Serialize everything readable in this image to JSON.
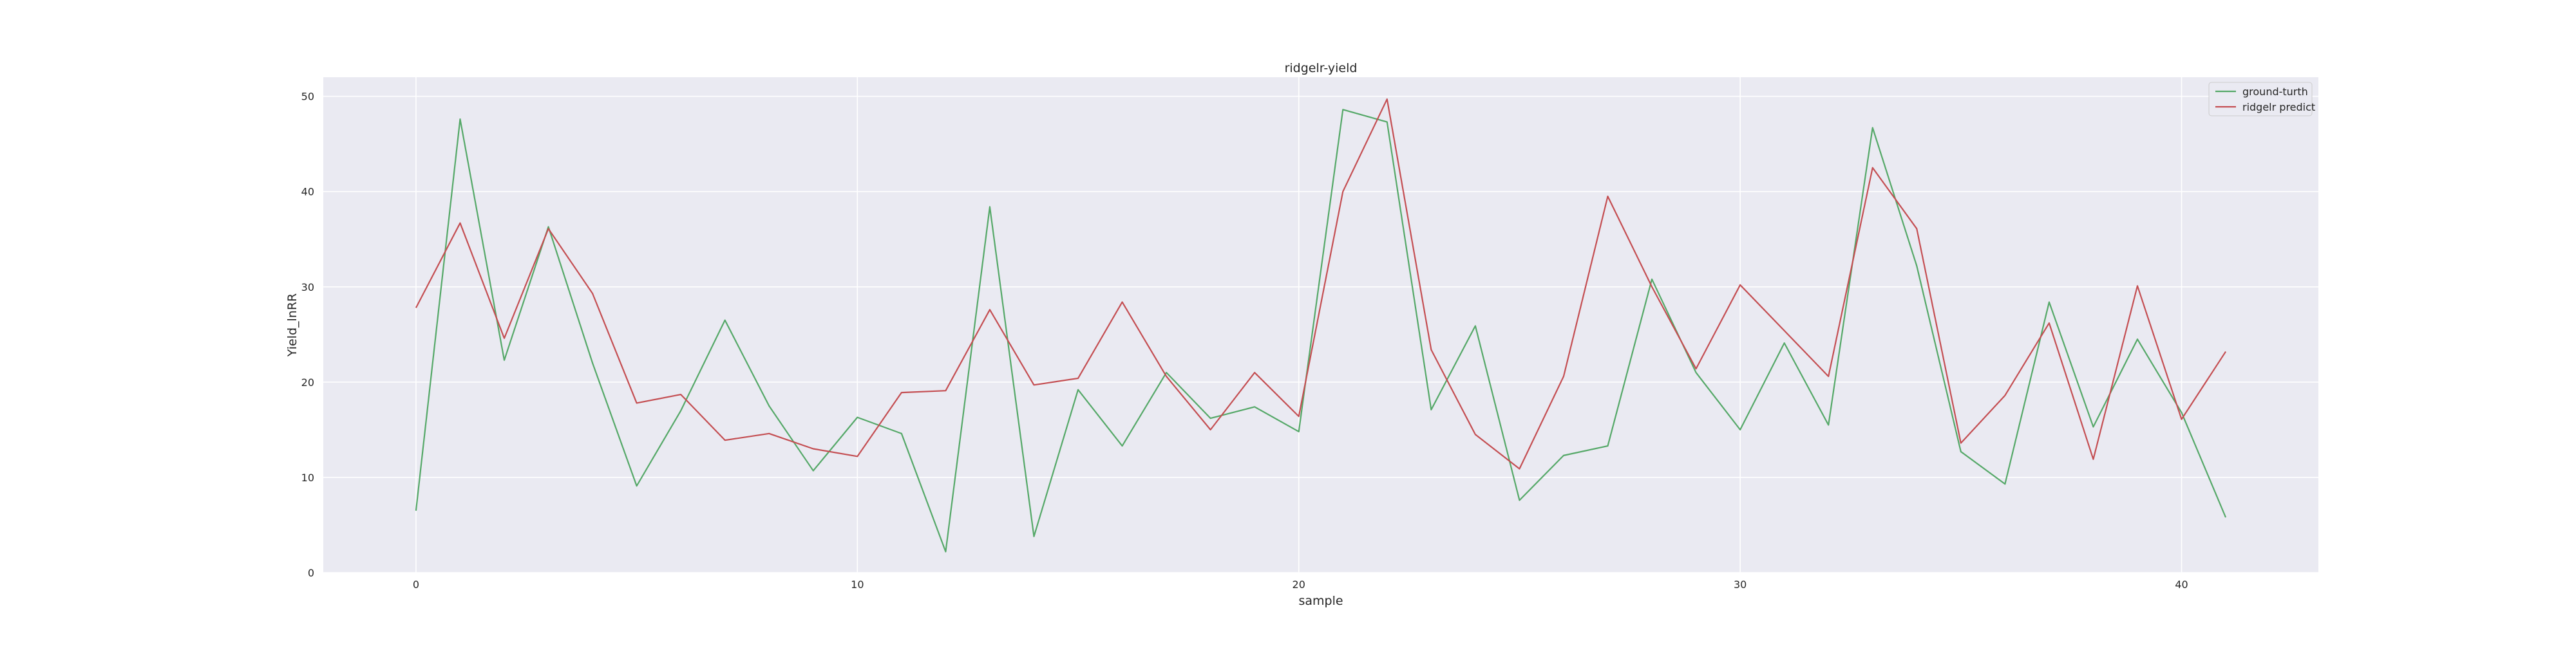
{
  "chart_data": {
    "type": "line",
    "title": "ridgelr-yield",
    "xlabel": "sample",
    "ylabel": "Yield_lnRR",
    "xlim": [
      -2.1,
      43.1
    ],
    "ylim": [
      0,
      52
    ],
    "xticks": [
      0,
      10,
      20,
      30,
      40
    ],
    "yticks": [
      0,
      10,
      20,
      30,
      40,
      50
    ],
    "grid": true,
    "legend_position": "top-right",
    "x": [
      0,
      1,
      2,
      3,
      4,
      5,
      6,
      7,
      8,
      9,
      10,
      11,
      12,
      13,
      14,
      15,
      16,
      17,
      18,
      19,
      20,
      21,
      22,
      23,
      24,
      25,
      26,
      27,
      28,
      29,
      30,
      31,
      32,
      33,
      34,
      35,
      36,
      37,
      38,
      39,
      40,
      41
    ],
    "series": [
      {
        "name": "ground-turth",
        "color": "#55a868",
        "values": [
          6.5,
          47.6,
          22.3,
          36.3,
          22.0,
          9.1,
          17.0,
          26.5,
          17.5,
          10.7,
          16.3,
          14.6,
          2.2,
          38.4,
          3.8,
          19.2,
          13.3,
          21.0,
          16.2,
          17.4,
          14.8,
          48.6,
          47.3,
          17.1,
          25.9,
          7.6,
          12.3,
          13.3,
          30.8,
          21.0,
          15.0,
          24.1,
          15.5,
          46.7,
          32.2,
          12.7,
          9.3,
          28.4,
          15.3,
          24.5,
          16.8,
          5.8
        ]
      },
      {
        "name": "ridgelr predict",
        "color": "#c44e52",
        "values": [
          27.8,
          36.7,
          24.6,
          36.1,
          29.3,
          17.8,
          18.7,
          13.9,
          14.6,
          13.0,
          12.2,
          18.9,
          19.1,
          27.6,
          19.7,
          20.4,
          28.4,
          20.6,
          15.0,
          21.0,
          16.4,
          40.0,
          49.7,
          23.4,
          14.5,
          10.9,
          20.6,
          39.5,
          30.0,
          21.4,
          30.2,
          25.4,
          20.6,
          42.5,
          36.1,
          13.6,
          18.6,
          26.2,
          11.9,
          30.1,
          16.1,
          23.2
        ]
      }
    ]
  }
}
